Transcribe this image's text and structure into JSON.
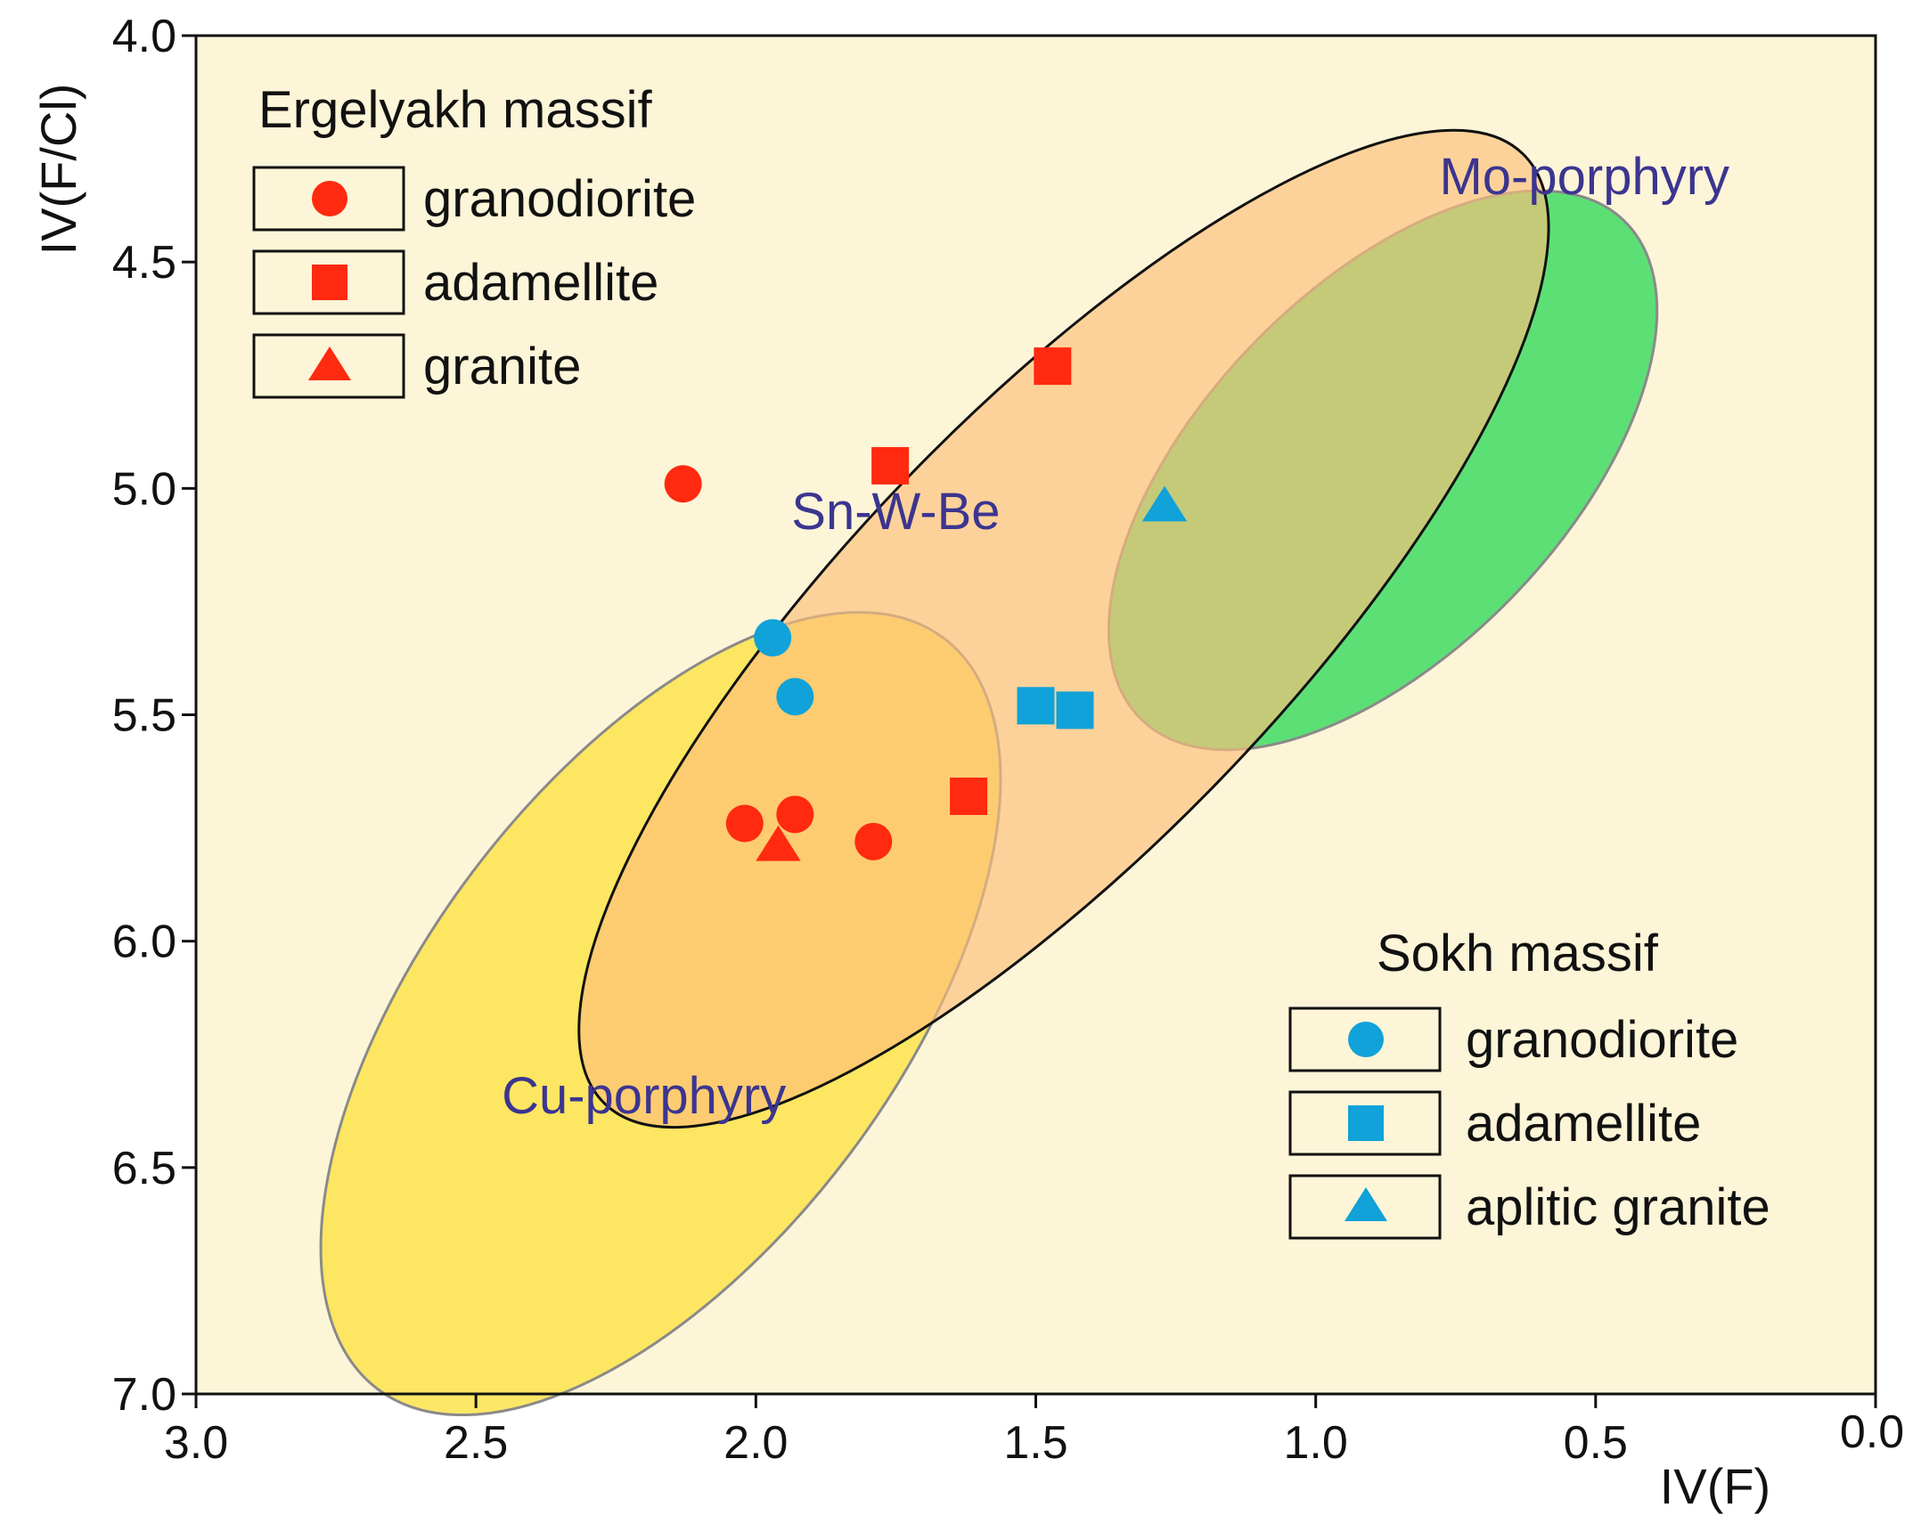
{
  "chart_data": {
    "type": "scatter",
    "title": "",
    "xlabel": "IV(F)",
    "ylabel": "IV(F/Cl)",
    "xlim": [
      3.0,
      0.0
    ],
    "ylim": [
      4.0,
      7.0
    ],
    "x_reversed": true,
    "y_reversed": true,
    "xticks": [
      3.0,
      2.5,
      2.0,
      1.5,
      1.0,
      0.5,
      0.0
    ],
    "xtick_labels": [
      "3.0",
      "2.5",
      "2.0",
      "1.5",
      "1.0",
      "0.5",
      "0.0"
    ],
    "yticks": [
      4.0,
      4.5,
      5.0,
      5.5,
      6.0,
      6.5,
      7.0
    ],
    "ytick_labels": [
      "4.0",
      "4.5",
      "5.0",
      "5.5",
      "6.0",
      "6.5",
      "7.0"
    ],
    "background_color": "#fdf5d8",
    "fields": [
      {
        "name": "Cu-porphyry",
        "center": [
          2.17,
          6.16
        ],
        "semi_axes": [
          0.84,
          0.52
        ],
        "rotation_deg": -53,
        "fill": "#fde34c",
        "opacity": 0.85,
        "stroke": "#8a8a8a",
        "label_color": "#3b3590",
        "label_at": [
          2.2,
          6.38
        ]
      },
      {
        "name": "Mo-porphyry",
        "center": [
          0.88,
          4.96
        ],
        "semi_axes": [
          0.62,
          0.4
        ],
        "rotation_deg": -46,
        "fill": "#3fdc64",
        "opacity": 0.85,
        "stroke": "#8a8a8a",
        "label_color": "#3b3590",
        "label_at": [
          0.52,
          4.35
        ]
      },
      {
        "name": "Sn-W-Be",
        "center": [
          1.45,
          5.31
        ],
        "semi_axes": [
          1.18,
          0.48
        ],
        "rotation_deg": -46,
        "fill": "#fdbf7a",
        "opacity": 0.65,
        "stroke": "#111111",
        "label_color": "#3b3590",
        "label_at": [
          1.75,
          5.09
        ]
      }
    ],
    "series": [
      {
        "name": "Ergelyakh massif granodiorite",
        "marker": "circle",
        "color": "#ff2a10",
        "points": [
          [
            2.13,
            4.99
          ],
          [
            2.02,
            5.74
          ],
          [
            1.93,
            5.72
          ],
          [
            1.79,
            5.78
          ]
        ]
      },
      {
        "name": "Ergelyakh massif adamellite",
        "marker": "square",
        "color": "#ff2a10",
        "points": [
          [
            1.47,
            4.73
          ],
          [
            1.76,
            4.95
          ],
          [
            1.62,
            5.68
          ]
        ]
      },
      {
        "name": "Ergelyakh massif granite",
        "marker": "triangle",
        "color": "#ff2a10",
        "points": [
          [
            1.96,
            5.79
          ]
        ]
      },
      {
        "name": "Sokh massif granodiorite",
        "marker": "circle",
        "color": "#10a2d9",
        "points": [
          [
            1.97,
            5.33
          ],
          [
            1.93,
            5.46
          ]
        ]
      },
      {
        "name": "Sokh massif adamellite",
        "marker": "square",
        "color": "#10a2d9",
        "points": [
          [
            1.5,
            5.48
          ],
          [
            1.43,
            5.49
          ]
        ]
      },
      {
        "name": "Sokh massif aplitic granite",
        "marker": "triangle",
        "color": "#10a2d9",
        "points": [
          [
            1.27,
            5.04
          ]
        ]
      }
    ],
    "legends": [
      {
        "title": "Ergelyakh massif",
        "position": "top-left",
        "color": "#ff2a10",
        "entries": [
          {
            "marker": "circle",
            "label": "granodiorite"
          },
          {
            "marker": "square",
            "label": "adamellite"
          },
          {
            "marker": "triangle",
            "label": "granite"
          }
        ]
      },
      {
        "title": "Sokh massif",
        "position": "bottom-right",
        "color": "#10a2d9",
        "entries": [
          {
            "marker": "circle",
            "label": "granodiorite"
          },
          {
            "marker": "square",
            "label": "adamellite"
          },
          {
            "marker": "triangle",
            "label": "aplitic granite"
          }
        ]
      }
    ]
  }
}
